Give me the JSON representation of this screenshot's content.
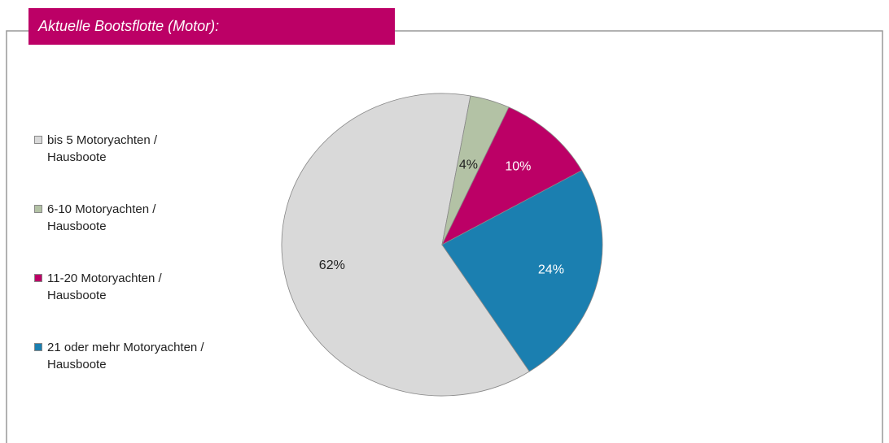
{
  "chart_data": {
    "type": "pie",
    "title": "Aktuelle Bootsflotte (Motor):",
    "categories": [
      "bis 5 Motoryachten / Hausboote",
      "6-10 Motoryachten / Hausboote",
      "11-20 Motoryachten / Hausboote",
      "21 oder mehr Motoryachten / Hausboote"
    ],
    "values": [
      62,
      4,
      10,
      24
    ],
    "value_labels": [
      "62%",
      "4%",
      "10%",
      "24%"
    ],
    "colors": [
      "#d9d9d9",
      "#b3c2a5",
      "#bc0066",
      "#1b7fb0"
    ],
    "legend": "left"
  }
}
